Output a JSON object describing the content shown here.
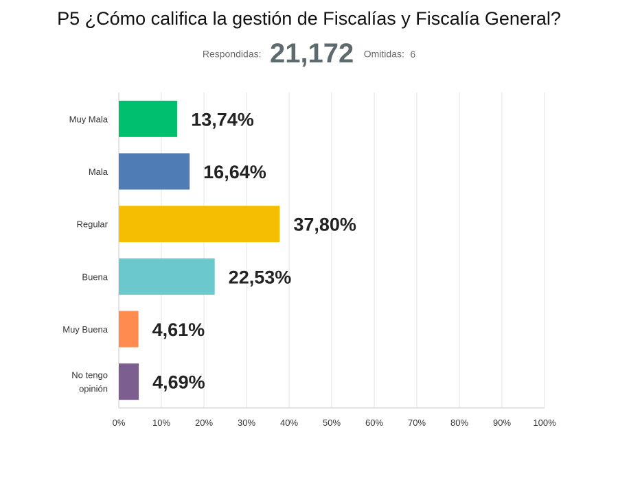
{
  "header": {
    "title": "P5 ¿Cómo califica la gestión de Fiscalías y Fiscalía General?",
    "answered_label": "Respondidas:",
    "answered_value": "21,172",
    "skipped_label": "Omitidas:",
    "skipped_value": "6"
  },
  "chart_data": {
    "type": "bar",
    "orientation": "horizontal",
    "categories": [
      "Muy Mala",
      "Mala",
      "Regular",
      "Buena",
      "Muy Buena",
      "No tengo opinión"
    ],
    "category_lines": [
      [
        "Muy Mala"
      ],
      [
        "Mala"
      ],
      [
        "Regular"
      ],
      [
        "Buena"
      ],
      [
        "Muy Buena"
      ],
      [
        "No tengo",
        "opinión"
      ]
    ],
    "values": [
      13.74,
      16.64,
      37.8,
      22.53,
      4.61,
      4.69
    ],
    "value_labels": [
      "13,74%",
      "16,64%",
      "37,80%",
      "22,53%",
      "4,61%",
      "4,69%"
    ],
    "colors": [
      "#00bf6f",
      "#507cb6",
      "#f5be00",
      "#6bc8cd",
      "#ff8b4f",
      "#7d5e90"
    ],
    "xlim": [
      0,
      100
    ],
    "x_ticks": [
      0,
      10,
      20,
      30,
      40,
      50,
      60,
      70,
      80,
      90,
      100
    ],
    "x_tick_labels": [
      "0%",
      "10%",
      "20%",
      "30%",
      "40%",
      "50%",
      "60%",
      "70%",
      "80%",
      "90%",
      "100%"
    ],
    "grid": true,
    "title": "P5 ¿Cómo califica la gestión de Fiscalías y Fiscalía General?",
    "xlabel": "",
    "ylabel": ""
  }
}
